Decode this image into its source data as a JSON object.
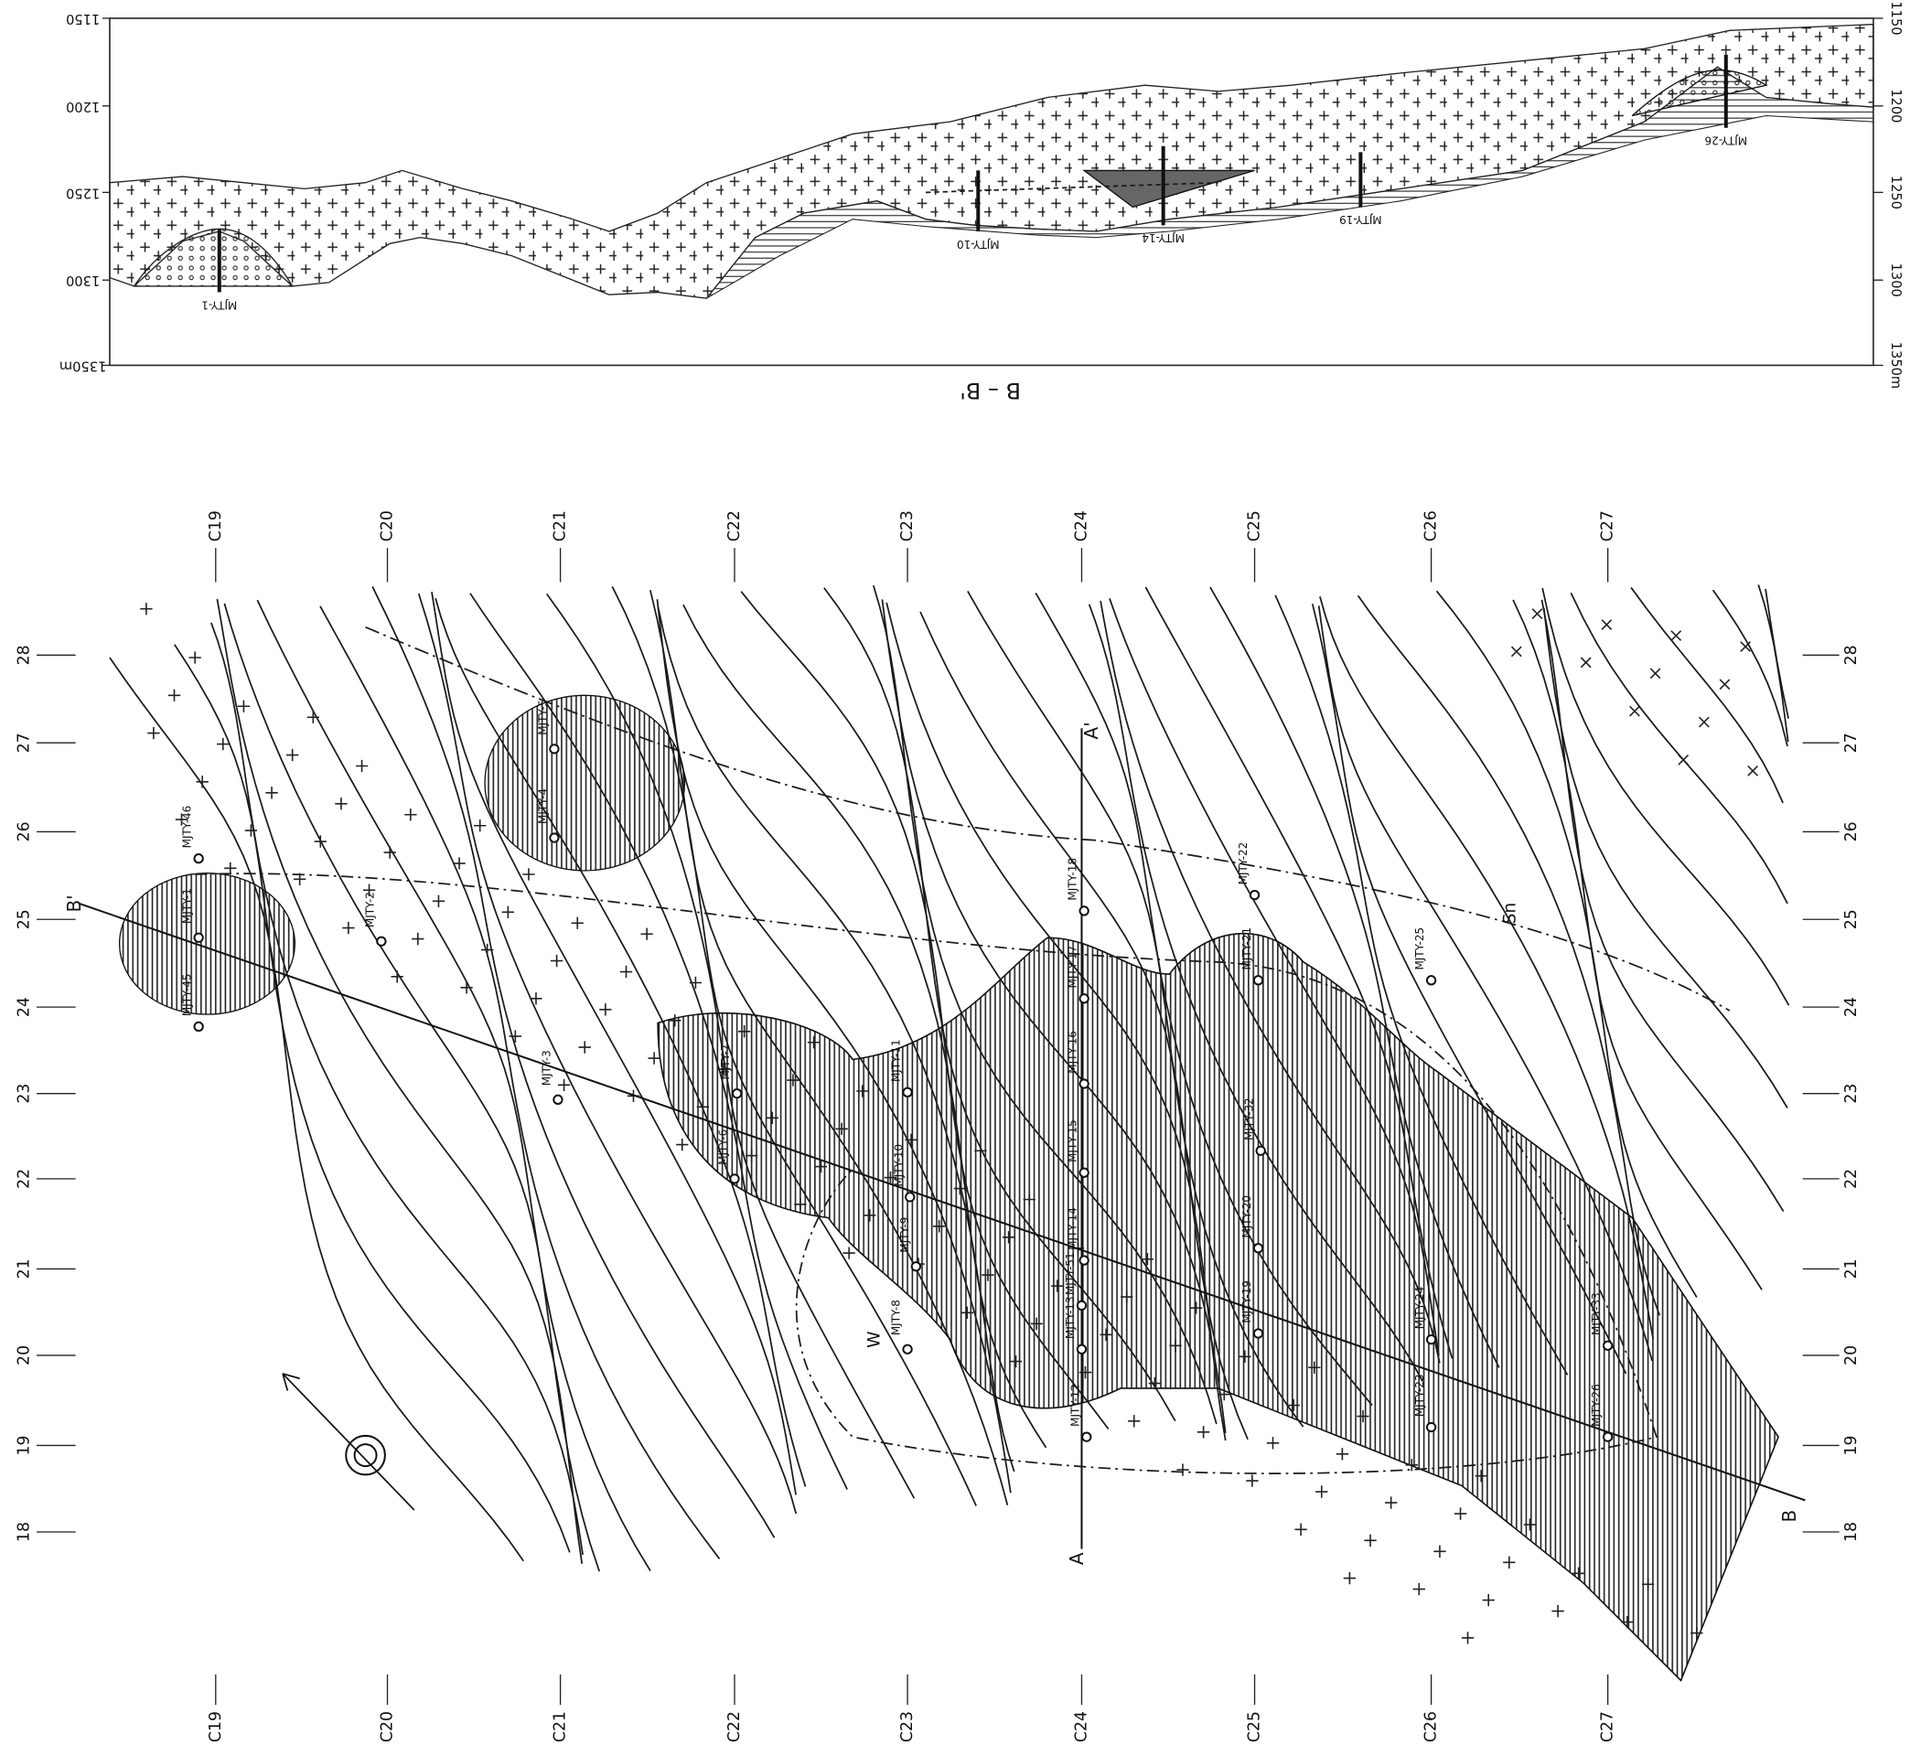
{
  "section": {
    "title": "B – B'",
    "left_scale": [
      "1150",
      "1200",
      "1250",
      "1300",
      "1350m"
    ],
    "right_scale": [
      "1150",
      "1200",
      "1250",
      "1300",
      "1350m"
    ],
    "boreholes": [
      "MJTY-1",
      "MJTY-10",
      "MJTY-14",
      "MJTY-19",
      "MJTY-26"
    ]
  },
  "map": {
    "columns": [
      "C19",
      "C20",
      "C21",
      "C22",
      "C23",
      "C24",
      "C25",
      "C26",
      "C27"
    ],
    "rows": [
      "28",
      "27",
      "26",
      "25",
      "24",
      "23",
      "22",
      "21",
      "20",
      "19",
      "18"
    ],
    "boreholes": [
      "MJTY-46",
      "MJTY-1",
      "MJTY-45",
      "MJTY-2",
      "MJTY-4",
      "MJTY-5",
      "MJTY-3",
      "MJTY-6",
      "MJTY-7",
      "MJTY-11",
      "MJTY-10",
      "MJTY-9",
      "MJTY-8",
      "MJTY-18",
      "MJTY-17",
      "MJTY-16",
      "MJTY-15",
      "MJTY-14",
      "MJTY-51",
      "MJTY-13",
      "MJTY-12",
      "MJTY-22",
      "MJTY-21",
      "MJTY-32",
      "MJTY-20",
      "MJTY-19",
      "MJTY-25",
      "MJTY-24",
      "MJTY-23",
      "MJTY-33",
      "MJTY-26"
    ],
    "markers": {
      "a": "A",
      "a_prime": "A'",
      "b": "B",
      "b_prime": "B'",
      "w": "W",
      "sn": "Sn"
    }
  }
}
